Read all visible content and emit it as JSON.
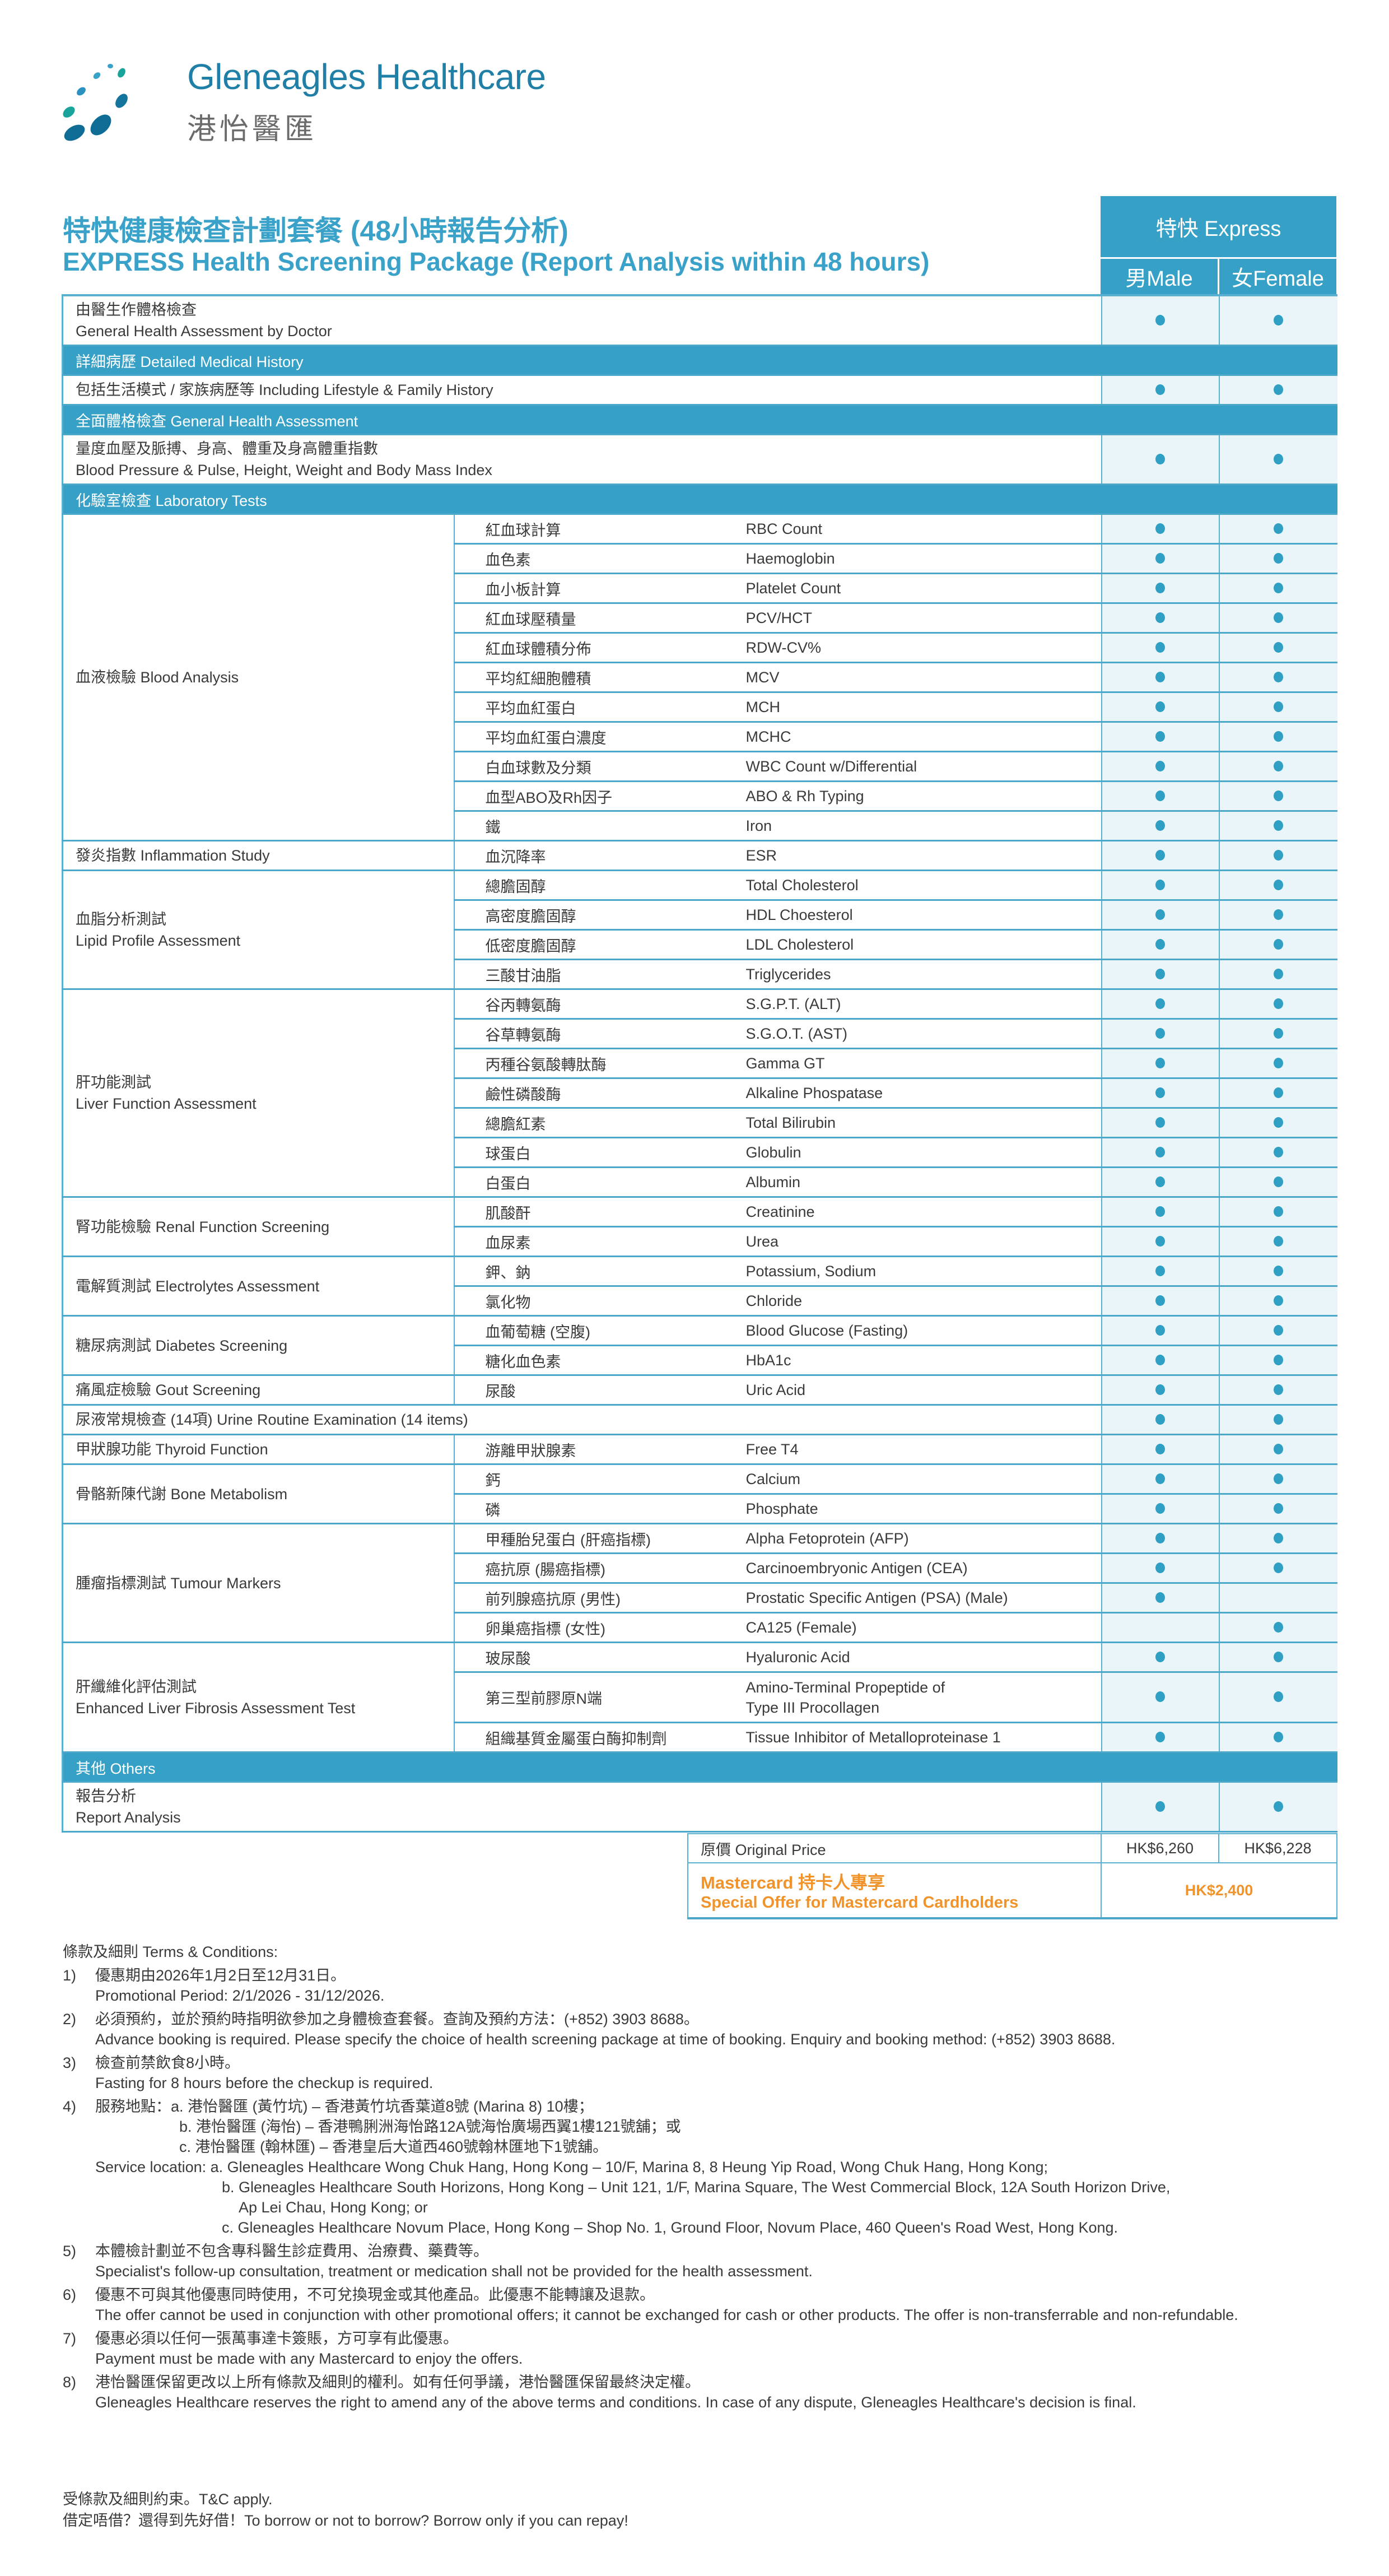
{
  "brand": {
    "name_en": "Gleneagles Healthcare",
    "name_zh": "港怡醫匯"
  },
  "title": {
    "zh": "特快健康檢查計劃套餐 (48小時報告分析)",
    "en": "EXPRESS Health Screening Package (Report Analysis within 48 hours)"
  },
  "columns": {
    "express": "特快 Express",
    "male": "男Male",
    "female": "女Female"
  },
  "sections": [
    {
      "header": null,
      "rows": [
        {
          "lines": [
            "由醫生作體格檢查",
            "General Health Assessment by Doctor"
          ],
          "male": true,
          "female": true
        }
      ]
    },
    {
      "header": "詳細病歷 Detailed Medical History",
      "rows": [
        {
          "lines": [
            "包括生活模式 / 家族病歷等  Including Lifestyle & Family History"
          ],
          "male": true,
          "female": true
        }
      ]
    },
    {
      "header": "全面體格檢查 General Health Assessment",
      "rows": [
        {
          "lines": [
            "量度血壓及脈搏、身高、體重及身高體重指數",
            "Blood Pressure & Pulse, Height, Weight and Body Mass Index"
          ],
          "male": true,
          "female": true
        }
      ]
    },
    {
      "header": "化驗室檢查 Laboratory Tests",
      "groups": [
        {
          "lines": [
            "血液檢驗 Blood Analysis"
          ],
          "items": [
            {
              "zh": "紅血球計算",
              "en": "RBC Count",
              "male": true,
              "female": true
            },
            {
              "zh": "血色素",
              "en": "Haemoglobin",
              "male": true,
              "female": true
            },
            {
              "zh": "血小板計算",
              "en": "Platelet Count",
              "male": true,
              "female": true
            },
            {
              "zh": "紅血球壓積量",
              "en": "PCV/HCT",
              "male": true,
              "female": true
            },
            {
              "zh": "紅血球體積分佈",
              "en": "RDW-CV%",
              "male": true,
              "female": true
            },
            {
              "zh": "平均紅細胞體積",
              "en": "MCV",
              "male": true,
              "female": true
            },
            {
              "zh": "平均血紅蛋白",
              "en": "MCH",
              "male": true,
              "female": true
            },
            {
              "zh": "平均血紅蛋白濃度",
              "en": "MCHC",
              "male": true,
              "female": true
            },
            {
              "zh": "白血球數及分類",
              "en": "WBC Count w/Differential",
              "male": true,
              "female": true
            },
            {
              "zh": "血型ABO及Rh因子",
              "en": "ABO & Rh Typing",
              "male": true,
              "female": true
            },
            {
              "zh": "鐵",
              "en": "Iron",
              "male": true,
              "female": true
            }
          ]
        },
        {
          "lines": [
            "發炎指數 Inflammation Study"
          ],
          "items": [
            {
              "zh": "血沉降率",
              "en": "ESR",
              "male": true,
              "female": true
            }
          ]
        },
        {
          "lines": [
            "血脂分析測試",
            "Lipid Profile Assessment"
          ],
          "items": [
            {
              "zh": "總膽固醇",
              "en": "Total Cholesterol",
              "male": true,
              "female": true
            },
            {
              "zh": "高密度膽固醇",
              "en": "HDL Choesterol",
              "male": true,
              "female": true
            },
            {
              "zh": "低密度膽固醇",
              "en": "LDL Cholesterol",
              "male": true,
              "female": true
            },
            {
              "zh": "三酸甘油脂",
              "en": "Triglycerides",
              "male": true,
              "female": true
            }
          ]
        },
        {
          "lines": [
            "肝功能測試",
            "Liver Function Assessment"
          ],
          "items": [
            {
              "zh": "谷丙轉氨酶",
              "en": "S.G.P.T. (ALT)",
              "male": true,
              "female": true
            },
            {
              "zh": "谷草轉氨酶",
              "en": "S.G.O.T. (AST)",
              "male": true,
              "female": true
            },
            {
              "zh": "丙種谷氨酸轉肽酶",
              "en": "Gamma GT",
              "male": true,
              "female": true
            },
            {
              "zh": "鹼性磷酸酶",
              "en": "Alkaline Phospatase",
              "male": true,
              "female": true
            },
            {
              "zh": "總膽紅素",
              "en": "Total Bilirubin",
              "male": true,
              "female": true
            },
            {
              "zh": "球蛋白",
              "en": "Globulin",
              "male": true,
              "female": true
            },
            {
              "zh": "白蛋白",
              "en": "Albumin",
              "male": true,
              "female": true
            }
          ]
        },
        {
          "lines": [
            "腎功能檢驗 Renal Function Screening"
          ],
          "items": [
            {
              "zh": "肌酸酐",
              "en": "Creatinine",
              "male": true,
              "female": true
            },
            {
              "zh": "血尿素",
              "en": "Urea",
              "male": true,
              "female": true
            }
          ]
        },
        {
          "lines": [
            "電解質測試 Electrolytes Assessment"
          ],
          "items": [
            {
              "zh": "鉀、鈉",
              "en": "Potassium, Sodium",
              "male": true,
              "female": true
            },
            {
              "zh": "氯化物",
              "en": "Chloride",
              "male": true,
              "female": true
            }
          ]
        },
        {
          "lines": [
            "糖尿病測試 Diabetes Screening"
          ],
          "items": [
            {
              "zh": "血葡萄糖 (空腹)",
              "en": "Blood Glucose (Fasting)",
              "male": true,
              "female": true
            },
            {
              "zh": "糖化血色素",
              "en": "HbA1c",
              "male": true,
              "female": true
            }
          ]
        },
        {
          "lines": [
            "痛風症檢驗 Gout Screening"
          ],
          "items": [
            {
              "zh": "尿酸",
              "en": "Uric Acid",
              "male": true,
              "female": true
            }
          ]
        },
        {
          "lines": [
            "尿液常規檢查 (14項) Urine Routine Examination (14 items)"
          ],
          "span": true,
          "male": true,
          "female": true
        },
        {
          "lines": [
            "甲狀腺功能 Thyroid Function"
          ],
          "items": [
            {
              "zh": "游離甲狀腺素",
              "en": "Free T4",
              "male": true,
              "female": true
            }
          ]
        },
        {
          "lines": [
            "骨骼新陳代謝 Bone Metabolism"
          ],
          "items": [
            {
              "zh": "鈣",
              "en": "Calcium",
              "male": true,
              "female": true
            },
            {
              "zh": "磷",
              "en": "Phosphate",
              "male": true,
              "female": true
            }
          ]
        },
        {
          "lines": [
            "腫瘤指標測試 Tumour Markers"
          ],
          "items": [
            {
              "zh": "甲種胎兒蛋白 (肝癌指標)",
              "en": "Alpha Fetoprotein (AFP)",
              "male": true,
              "female": true
            },
            {
              "zh": "癌抗原 (腸癌指標)",
              "en": "Carcinoembryonic Antigen (CEA)",
              "male": true,
              "female": true
            },
            {
              "zh": "前列腺癌抗原 (男性)",
              "en": "Prostatic Specific Antigen (PSA) (Male)",
              "male": true,
              "female": false
            },
            {
              "zh": "卵巢癌指標 (女性)",
              "en": "CA125 (Female)",
              "male": false,
              "female": true
            }
          ]
        },
        {
          "lines": [
            "肝纖維化評估測試",
            "Enhanced Liver Fibrosis Assessment Test"
          ],
          "items": [
            {
              "zh": "玻尿酸",
              "en": "Hyaluronic Acid",
              "male": true,
              "female": true
            },
            {
              "zh": "第三型前膠原N端",
              "en": "Amino-Terminal Propeptide of\nType III Procollagen",
              "male": true,
              "female": true
            },
            {
              "zh": "組織基質金屬蛋白酶抑制劑",
              "en": "Tissue Inhibitor of Metalloproteinase 1",
              "male": true,
              "female": true
            }
          ]
        }
      ]
    },
    {
      "header": "其他 Others",
      "rows": [
        {
          "lines": [
            "報告分析",
            "Report Analysis"
          ],
          "male": true,
          "female": true
        }
      ]
    }
  ],
  "pricing": {
    "original_label": "原價 Original Price",
    "original_male": "HK$6,260",
    "original_female": "HK$6,228",
    "offer_label_zh": "Mastercard 持卡人專享",
    "offer_label_en": "Special Offer for Mastercard Cardholders",
    "offer_price": "HK$2,400"
  },
  "terms": {
    "heading": "條款及細則 Terms & Conditions:",
    "items": [
      {
        "num": "1)",
        "lines": [
          "優惠期由2026年1月2日至12月31日。",
          "Promotional Period: 2/1/2026 - 31/12/2026."
        ]
      },
      {
        "num": "2)",
        "lines": [
          "必須預約，並於預約時指明欲參加之身體檢查套餐。查詢及預約方法：(+852) 3903 8688。",
          "Advance booking is required. Please specify the choice of health screening package at time of booking. Enquiry and booking method: (+852) 3903 8688."
        ]
      },
      {
        "num": "3)",
        "lines": [
          "檢查前禁飲食8小時。",
          "Fasting for 8 hours before the checkup is required."
        ]
      },
      {
        "num": "4)",
        "lines": [
          "服務地點：a. 港怡醫匯 (黃竹坑) – 香港黃竹坑香葉道8號 (Marina 8) 10樓；",
          "b. 港怡醫匯 (海怡) – 香港鴨脷洲海怡路12A號海怡廣場西翼1樓121號舖；或",
          "c. 港怡醫匯 (翰林匯) – 香港皇后大道西460號翰林匯地下1號舖。",
          "Service location: a. Gleneagles Healthcare Wong Chuk Hang, Hong Kong – 10/F, Marina 8, 8 Heung Yip Road, Wong Chuk Hang, Hong Kong;",
          "b. Gleneagles Healthcare South Horizons, Hong Kong – Unit 121, 1/F, Marina Square, The West Commercial Block, 12A South Horizon Drive,",
          "Ap Lei Chau, Hong Kong; or",
          "c. Gleneagles Healthcare Novum Place, Hong Kong – Shop No. 1, Ground Floor, Novum Place, 460 Queen's Road West, Hong Kong."
        ]
      },
      {
        "num": "5)",
        "lines": [
          "本體檢計劃並不包含專科醫生診症費用、治療費、藥費等。",
          "Specialist's follow-up consultation, treatment or medication shall not be provided for the health assessment."
        ]
      },
      {
        "num": "6)",
        "lines": [
          "優惠不可與其他優惠同時使用，不可兌換現金或其他產品。此優惠不能轉讓及退款。",
          "The offer cannot be used in conjunction with other promotional offers; it cannot be exchanged for cash or other products. The offer is non-transferrable and non-refundable."
        ]
      },
      {
        "num": "7)",
        "lines": [
          "優惠必須以任何一張萬事達卡簽賬，方可享有此優惠。",
          "Payment must be made with any Mastercard to enjoy the offers."
        ]
      },
      {
        "num": "8)",
        "lines": [
          "港怡醫匯保留更改以上所有條款及細則的權利。如有任何爭議，港怡醫匯保留最終決定權。",
          "Gleneagles Healthcare reserves the right to amend any of the above terms and conditions. In case of any dispute, Gleneagles Healthcare's decision is final."
        ]
      }
    ]
  },
  "footer": [
    "受條款及細則約束。T&C apply.",
    "借定唔借？還得到先好借！To borrow or not to borrow? Borrow only if you can repay!"
  ],
  "colors": {
    "accent": "#36a0c6",
    "title": "#3aa1c8",
    "cell_bg": "#e9f5f8",
    "offer": "#f0932b",
    "brand": "#1f7fa6"
  }
}
